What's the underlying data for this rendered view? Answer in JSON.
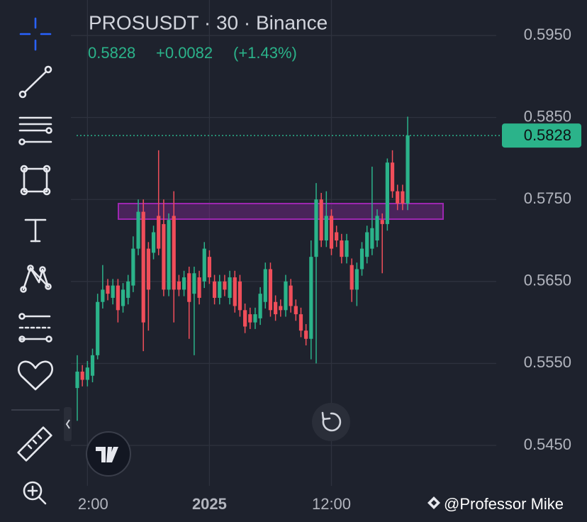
{
  "chart_data": {
    "type": "candlestick",
    "title": "PROSUSDT · 30 · Binance",
    "last_price": 0.5828,
    "change": "+0.0082",
    "change_pct": "(+1.43%)",
    "watermark": "@Professor Mike",
    "up_color": "#2bb38a",
    "down_color": "#f04e5a",
    "zone": [
      0.5745,
      0.5726
    ],
    "zone_color": "#9c27b0",
    "ylim": [
      0.54007,
      0.59933
    ],
    "yticks": [
      {
        "value": 0.545,
        "label": "0.5450"
      },
      {
        "value": 0.555,
        "label": "0.5550"
      },
      {
        "value": 0.565,
        "label": "0.5650"
      },
      {
        "value": 0.575,
        "label": "0.5750"
      },
      {
        "value": 0.585,
        "label": "0.5850"
      },
      {
        "value": 0.595,
        "label": "0.5950"
      }
    ],
    "grid": true,
    "categories": [
      null,
      null,
      "2:00",
      null,
      null,
      null,
      null,
      null,
      null,
      null,
      null,
      null,
      null,
      null,
      null,
      null,
      null,
      null,
      null,
      null,
      null,
      null,
      null,
      null,
      null,
      null,
      "2025",
      null,
      null,
      null,
      null,
      null,
      null,
      null,
      null,
      null,
      null,
      null,
      null,
      null,
      null,
      null,
      null,
      null,
      null,
      null,
      null,
      null,
      null,
      null,
      "12:00",
      null,
      null,
      null,
      null,
      null,
      null,
      null,
      null,
      null,
      null,
      null,
      null,
      null,
      null,
      null
    ],
    "open": [
      0.552,
      0.554,
      0.553,
      0.5535,
      0.556,
      0.5625,
      0.5645,
      0.563,
      0.5645,
      0.562,
      0.563,
      0.5645,
      0.569,
      0.5735,
      0.569,
      0.5685,
      0.573,
      0.572,
      0.564,
      0.573,
      0.565,
      0.564,
      0.566,
      0.5635,
      0.5655,
      0.565,
      0.568,
      0.565,
      0.563,
      0.565,
      0.563,
      0.5655,
      0.565,
      0.5615,
      0.561,
      0.56,
      0.5605,
      0.5625,
      0.5665,
      0.5625,
      0.562,
      0.5615,
      0.5645,
      0.562,
      0.561,
      0.559,
      0.558,
      0.568,
      0.575,
      0.57,
      0.573,
      0.571,
      0.57,
      0.568,
      0.567,
      0.564,
      0.5665,
      0.568,
      0.569,
      0.57,
      0.5725,
      0.572,
      0.5795,
      0.576,
      0.576,
      0.5745
    ],
    "high": [
      0.556,
      0.5548,
      0.5553,
      0.5568,
      0.5635,
      0.567,
      0.5653,
      0.5653,
      0.5653,
      0.5648,
      0.5658,
      0.5705,
      0.575,
      0.575,
      0.5698,
      0.5718,
      0.581,
      0.575,
      0.5733,
      0.576,
      0.5658,
      0.5663,
      0.5668,
      0.5668,
      0.5663,
      0.5698,
      0.5688,
      0.5658,
      0.5658,
      0.5658,
      0.5663,
      0.5663,
      0.5658,
      0.5623,
      0.5618,
      0.5618,
      0.5643,
      0.5673,
      0.5673,
      0.5633,
      0.5628,
      0.5658,
      0.5653,
      0.5628,
      0.5618,
      0.5598,
      0.57,
      0.577,
      0.5758,
      0.576,
      0.5738,
      0.5718,
      0.5708,
      0.5708,
      0.5678,
      0.5673,
      0.5698,
      0.5718,
      0.579,
      0.5738,
      0.5733,
      0.58,
      0.581,
      0.5768,
      0.5768,
      0.5851
    ],
    "low": [
      0.548,
      0.5522,
      0.5522,
      0.5527,
      0.5555,
      0.5617,
      0.5627,
      0.5622,
      0.56,
      0.5612,
      0.5622,
      0.5637,
      0.5682,
      0.5565,
      0.559,
      0.5677,
      0.5682,
      0.5632,
      0.5632,
      0.56,
      0.5632,
      0.5632,
      0.558,
      0.556,
      0.5622,
      0.5642,
      0.5647,
      0.5622,
      0.5622,
      0.5632,
      0.5622,
      0.5612,
      0.5607,
      0.5587,
      0.5592,
      0.5592,
      0.5597,
      0.5617,
      0.5607,
      0.5602,
      0.5607,
      0.5607,
      0.5612,
      0.5602,
      0.5582,
      0.5572,
      0.5555,
      0.555,
      0.5692,
      0.5692,
      0.5682,
      0.5692,
      0.5672,
      0.5672,
      0.5625,
      0.562,
      0.5657,
      0.5672,
      0.5682,
      0.5692,
      0.566,
      0.5712,
      0.5752,
      0.5737,
      0.5737,
      0.5737
    ],
    "close": [
      0.554,
      0.553,
      0.5545,
      0.556,
      0.5625,
      0.564,
      0.5635,
      0.5645,
      0.5615,
      0.564,
      0.565,
      0.569,
      0.5735,
      0.56,
      0.564,
      0.571,
      0.569,
      0.564,
      0.5725,
      0.564,
      0.564,
      0.5655,
      0.5625,
      0.566,
      0.563,
      0.569,
      0.5655,
      0.563,
      0.565,
      0.564,
      0.5655,
      0.562,
      0.5615,
      0.5595,
      0.56,
      0.561,
      0.5635,
      0.5665,
      0.5615,
      0.561,
      0.5615,
      0.565,
      0.562,
      0.561,
      0.559,
      0.558,
      0.568,
      0.575,
      0.57,
      0.573,
      0.569,
      0.57,
      0.568,
      0.57,
      0.564,
      0.5665,
      0.569,
      0.571,
      0.5715,
      0.573,
      0.572,
      0.5795,
      0.576,
      0.5745,
      0.5745,
      0.5828
    ]
  }
}
